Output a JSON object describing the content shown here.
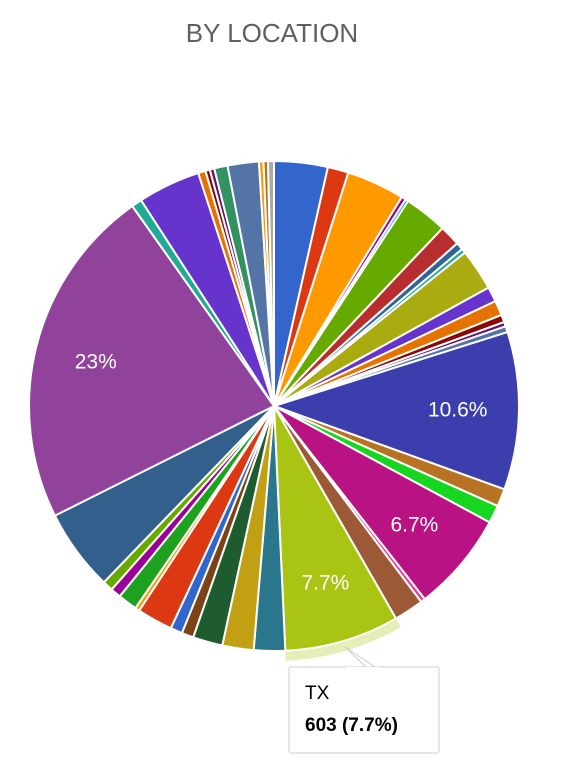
{
  "chart_data": {
    "type": "pie",
    "title": "BY LOCATION",
    "slices": [
      {
        "label": "",
        "value": 3.6,
        "color": "#3366cc"
      },
      {
        "label": "",
        "value": 1.4,
        "color": "#dc3912"
      },
      {
        "label": "",
        "value": 3.9,
        "color": "#ff9900"
      },
      {
        "label": "",
        "value": 0.3,
        "color": "#990099"
      },
      {
        "label": "",
        "value": 0.2,
        "color": "#0099c6"
      },
      {
        "label": "",
        "value": 2.9,
        "color": "#66aa00"
      },
      {
        "label": "",
        "value": 1.4,
        "color": "#b82e2e"
      },
      {
        "label": "",
        "value": 0.5,
        "color": "#316395"
      },
      {
        "label": "",
        "value": 0.3,
        "color": "#22aa99"
      },
      {
        "label": "",
        "value": 2.8,
        "color": "#aaaa11"
      },
      {
        "label": "",
        "value": 1.0,
        "color": "#6633cc"
      },
      {
        "label": "",
        "value": 1.0,
        "color": "#e67300"
      },
      {
        "label": "",
        "value": 0.5,
        "color": "#8b0707"
      },
      {
        "label": "",
        "value": 0.3,
        "color": "#651067"
      },
      {
        "label": "",
        "value": 0.4,
        "color": "#5574a6"
      },
      {
        "label": "",
        "value": 10.6,
        "color": "#3b3eac",
        "display": "10.6%"
      },
      {
        "label": "",
        "value": 1.2,
        "color": "#b77322"
      },
      {
        "label": "",
        "value": 1.2,
        "color": "#16d620"
      },
      {
        "label": "",
        "value": 6.7,
        "color": "#b91383",
        "display": "6.7%"
      },
      {
        "label": "",
        "value": 0.3,
        "color": "#f4359e"
      },
      {
        "label": "",
        "value": 2.0,
        "color": "#9c5935"
      },
      {
        "label": "TX",
        "value": 7.7,
        "color": "#a9c413",
        "display": "7.7%",
        "count": "603",
        "highlight": true
      },
      {
        "label": "",
        "value": 2.1,
        "color": "#2a778d"
      },
      {
        "label": "",
        "value": 2.1,
        "color": "#c2a014"
      },
      {
        "label": "",
        "value": 2.0,
        "color": "#1e5b2e"
      },
      {
        "label": "",
        "value": 0.8,
        "color": "#7b4316"
      },
      {
        "label": "",
        "value": 0.8,
        "color": "#3366cc"
      },
      {
        "label": "",
        "value": 2.4,
        "color": "#dc3912"
      },
      {
        "label": "",
        "value": 0.3,
        "color": "#ff9900"
      },
      {
        "label": "",
        "value": 1.3,
        "color": "#1ea11e"
      },
      {
        "label": "",
        "value": 0.7,
        "color": "#990099"
      },
      {
        "label": "",
        "value": 0.7,
        "color": "#66aa00"
      },
      {
        "label": "",
        "value": 5.5,
        "color": "#335f8d"
      },
      {
        "label": "",
        "value": 23,
        "color": "#91439c",
        "display": "23%"
      },
      {
        "label": "",
        "value": 0.7,
        "color": "#22aa99"
      },
      {
        "label": "",
        "value": 4.2,
        "color": "#6633cc"
      },
      {
        "label": "",
        "value": 0.5,
        "color": "#e67300"
      },
      {
        "label": "",
        "value": 0.3,
        "color": "#8b0707"
      },
      {
        "label": "",
        "value": 0.3,
        "color": "#651067"
      },
      {
        "label": "",
        "value": 0.9,
        "color": "#329262"
      },
      {
        "label": "",
        "value": 2.1,
        "color": "#5574a6"
      },
      {
        "label": "",
        "value": 0.3,
        "color": "#ff9900"
      },
      {
        "label": "",
        "value": 0.3,
        "color": "#b77322"
      },
      {
        "label": "",
        "value": 0.4,
        "color": "#aaaaaa"
      }
    ],
    "legend": "none"
  },
  "tooltip": {
    "label": "TX",
    "value_text": "603 (7.7%)"
  }
}
